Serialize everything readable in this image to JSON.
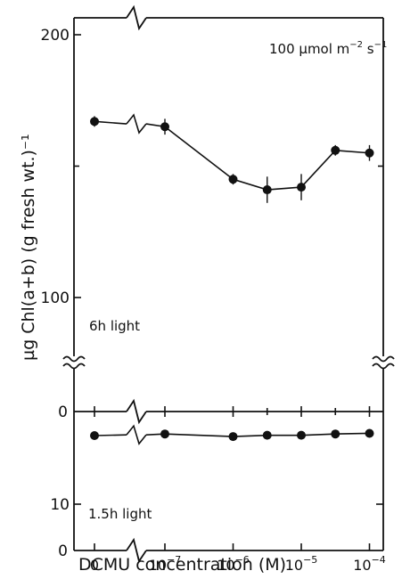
{
  "chart_data": [
    {
      "type": "line",
      "panel": "top",
      "ylabel": "µg Chl(a+b) (g fresh wt.)⁻¹",
      "yticks": [
        "200",
        "100"
      ],
      "ylim": [
        86,
        200
      ],
      "axis_break": true,
      "annotations": [
        "100 µmol m⁻² s⁻¹",
        "6h light"
      ],
      "categories": [
        "0",
        "10⁻⁷",
        "10⁻⁶",
        "3×10⁻⁶",
        "10⁻⁵",
        "3×10⁻⁵",
        "10⁻⁴"
      ],
      "x_log10": [
        null,
        -7,
        -6,
        -5.5,
        -5,
        -4.5,
        -4
      ],
      "series": [
        {
          "values": [
            167,
            165,
            145,
            141,
            142,
            156,
            155
          ],
          "errors": [
            2,
            3,
            2,
            5,
            5,
            2,
            3
          ]
        }
      ]
    },
    {
      "type": "line",
      "panel": "bottom",
      "yticks": [
        "0",
        "10",
        "0"
      ],
      "ylim": [
        0,
        15
      ],
      "annotations": [
        "1.5h light"
      ],
      "categories": [
        "0",
        "10⁻⁷",
        "10⁻⁶",
        "3×10⁻⁶",
        "10⁻⁵",
        "3×10⁻⁵",
        "10⁻⁴"
      ],
      "x_log10": [
        null,
        -7,
        -6,
        -5.5,
        -5,
        -4.5,
        -4
      ],
      "series": [
        {
          "values": [
            7.5,
            7,
            7.8,
            7.4,
            7.4,
            7,
            6.8
          ]
        }
      ]
    }
  ],
  "xaxis": {
    "label": "DCMU concentration  (M)",
    "tick_labels": [
      {
        "base": "0",
        "exp": ""
      },
      {
        "base": "10",
        "exp": "−7"
      },
      {
        "base": "10",
        "exp": "−6"
      },
      {
        "base": "10",
        "exp": "−5"
      },
      {
        "base": "10",
        "exp": "−4"
      }
    ]
  }
}
